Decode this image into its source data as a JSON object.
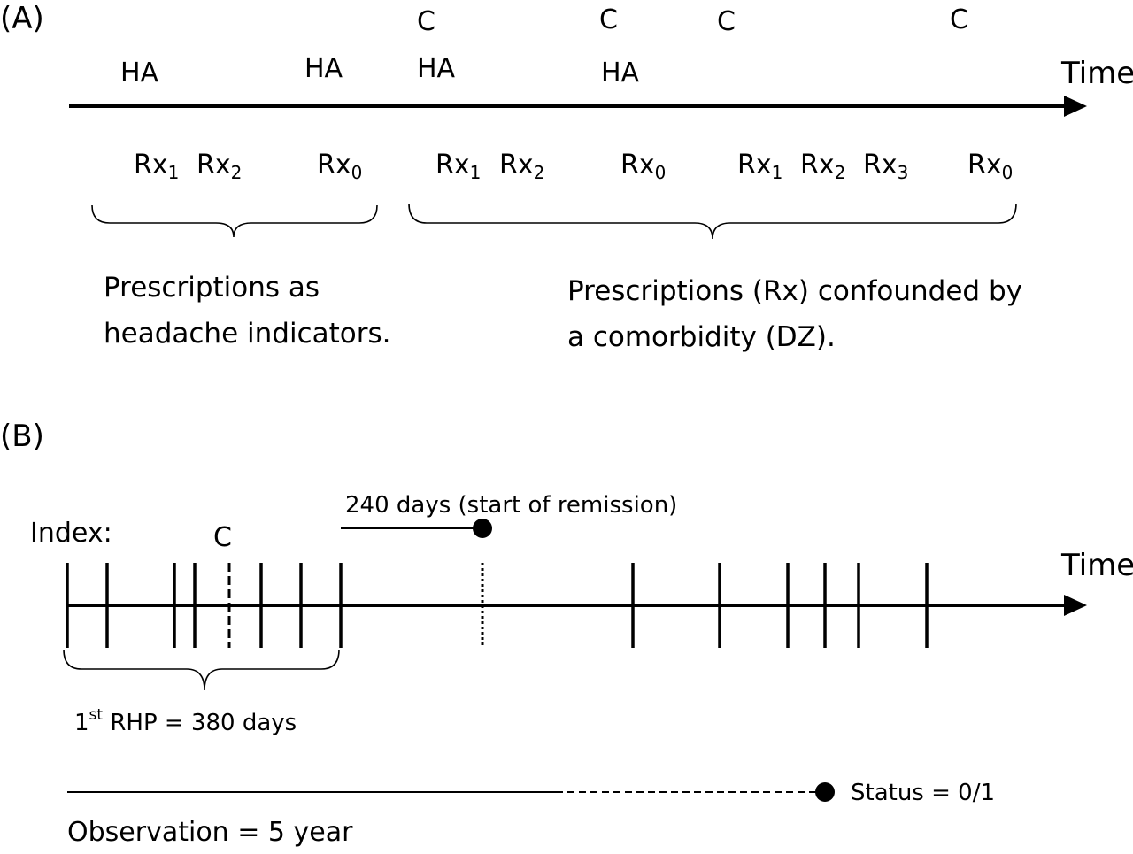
{
  "panel_a": {
    "label": "(A)",
    "time_label": "Time",
    "ha_labels": [
      "HA",
      "HA",
      "HA",
      "HA"
    ],
    "c_labels": [
      "C",
      "C",
      "C",
      "C"
    ],
    "rx": [
      {
        "base": "Rx",
        "sub": "1"
      },
      {
        "base": "Rx",
        "sub": "2"
      },
      {
        "base": "Rx",
        "sub": "0"
      },
      {
        "base": "Rx",
        "sub": "1"
      },
      {
        "base": "Rx",
        "sub": "2"
      },
      {
        "base": "Rx",
        "sub": "0"
      },
      {
        "base": "Rx",
        "sub": "1"
      },
      {
        "base": "Rx",
        "sub": "2"
      },
      {
        "base": "Rx",
        "sub": "3"
      },
      {
        "base": "Rx",
        "sub": "0"
      }
    ],
    "left_caption": [
      "Prescriptions as",
      "headache indicators."
    ],
    "right_caption": [
      "Prescriptions (Rx) confounded by",
      "a comorbidity (DZ)."
    ]
  },
  "panel_b": {
    "label": "(B)",
    "time_label": "Time",
    "index_label": "Index:",
    "c_label": "C",
    "remission_label": "240 days (start of remission)",
    "rhp": {
      "ordinal": "1",
      "suffix": "st",
      "text": " RHP = 380 days"
    },
    "status_label": "Status = 0/1",
    "observation_label": "Observation = 5 year"
  }
}
